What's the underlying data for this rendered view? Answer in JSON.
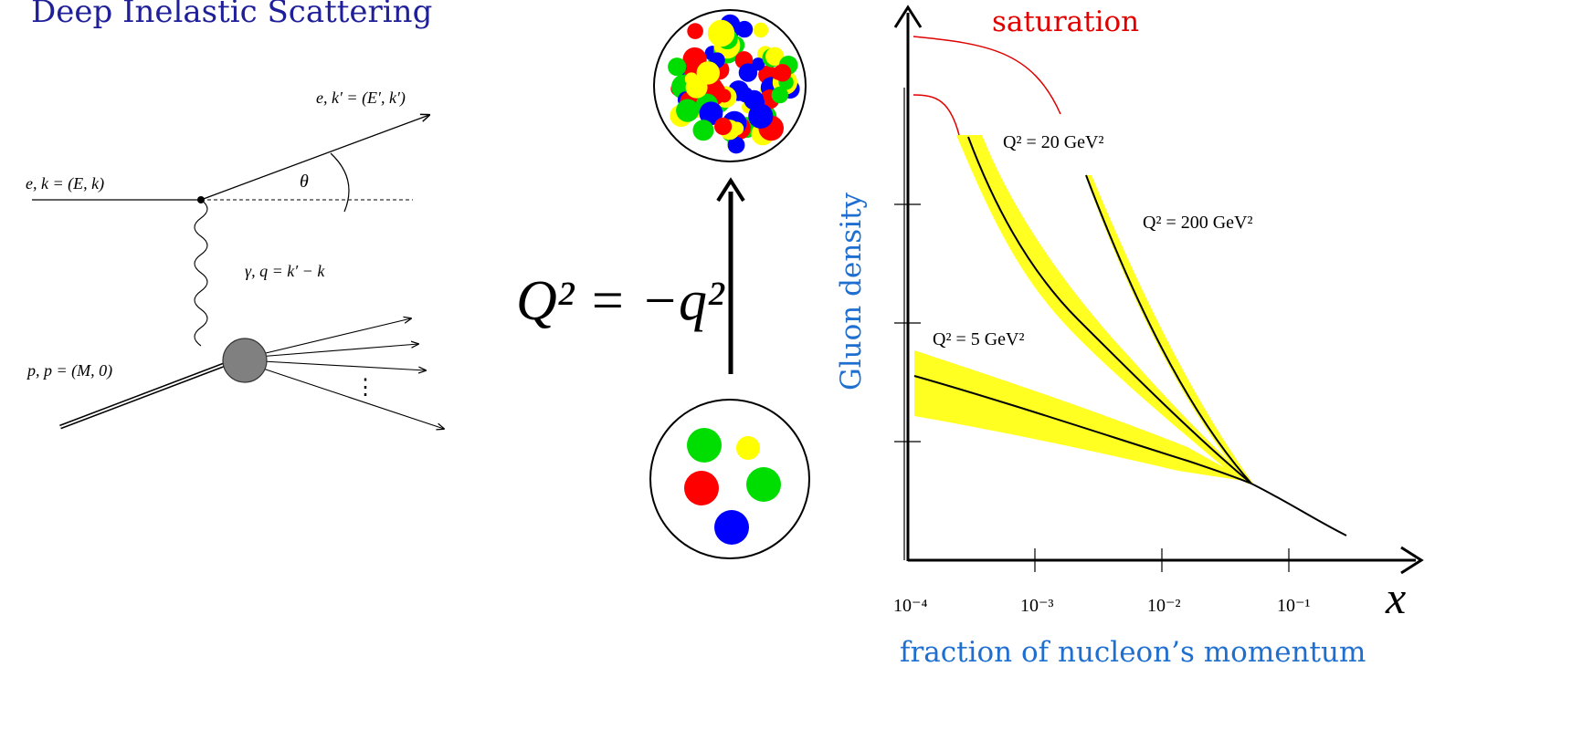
{
  "title": "Deep Inelastic Scattering",
  "feynman": {
    "incoming_electron": "e, k = (E, k)",
    "outgoing_electron": "e, k′ = (E′, k′)",
    "angle": "θ",
    "photon": "γ, q = k′ − k",
    "proton": "p, p = (M, 0)",
    "dots": "⋮"
  },
  "q2_formula": "Q² = −q²",
  "proton_circles": {
    "colors": {
      "red": "#ff0000",
      "green": "#00dd00",
      "blue": "#0000ff",
      "yellow": "#ffff00"
    }
  },
  "chart_data": {
    "type": "line",
    "ylabel": "Gluon density",
    "xlabel": "fraction of nucleon’s momentum",
    "x_symbol": "x",
    "x_scale": "log",
    "xlim": [
      0.0001,
      1
    ],
    "x_ticks": [
      "10⁻⁴",
      "10⁻³",
      "10⁻²",
      "10⁻¹"
    ],
    "saturation_label": "saturation",
    "series": [
      {
        "name": "Q² = 5 GeV²",
        "x": [
          0.0001,
          0.001,
          0.01,
          0.05,
          0.3
        ],
        "y": [
          0.38,
          0.3,
          0.21,
          0.14,
          0.05
        ]
      },
      {
        "name": "Q² = 20 GeV²",
        "x": [
          0.0003,
          0.001,
          0.01,
          0.05,
          0.3
        ],
        "y": [
          0.89,
          0.64,
          0.33,
          0.14,
          0.05
        ]
      },
      {
        "name": "Q² = 200 GeV²",
        "x": [
          0.0027,
          0.01,
          0.05,
          0.3
        ],
        "y": [
          0.8,
          0.54,
          0.14,
          0.05
        ]
      }
    ]
  }
}
